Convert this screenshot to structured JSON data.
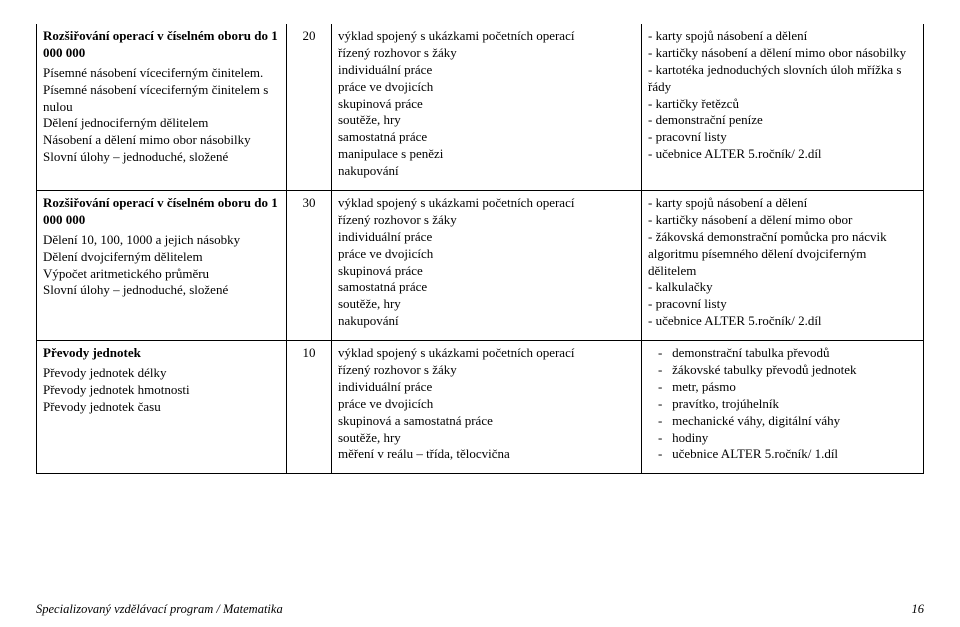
{
  "rows": [
    {
      "c1": {
        "title": "Rozšiřování operací v číselném oboru do 1 000 000",
        "lines": [
          "Písemné násobení víceciferným činitelem.",
          "Písemné násobení víceciferným činitelem s nulou",
          "Dělení jednociferným dělitelem",
          "Násobení a dělení mimo obor násobilky",
          "Slovní úlohy – jednoduché, složené"
        ]
      },
      "c2": "20",
      "c3": [
        "výklad spojený s ukázkami početních operací",
        "řízený rozhovor s žáky",
        "individuální práce",
        "práce ve dvojicích",
        "skupinová práce",
        "soutěže, hry",
        "samostatná práce",
        "manipulace s penězi",
        "nakupování"
      ],
      "c4": [
        "- karty spojů násobení a dělení",
        "- kartičky násobení a dělení mimo obor násobilky",
        "- kartotéka jednoduchých slovních úloh mřížka s řády",
        "- kartičky řetězců",
        "- demonstrační peníze",
        "- pracovní listy",
        "- učebnice ALTER 5.ročník/ 2.díl"
      ]
    },
    {
      "c1": {
        "title": "Rozšiřování operací v číselném oboru do 1 000 000",
        "lines": [
          "Dělení 10, 100, 1000 a jejich násobky",
          "Dělení dvojciferným dělitelem",
          "Výpočet aritmetického průměru",
          "Slovní úlohy – jednoduché, složené"
        ]
      },
      "c2": "30",
      "c3": [
        "výklad spojený s ukázkami početních operací",
        "řízený rozhovor s žáky",
        "individuální práce",
        "práce ve dvojicích",
        "skupinová práce",
        "samostatná práce",
        "soutěže, hry",
        "nakupování"
      ],
      "c4": [
        "- karty spojů násobení a dělení",
        "- kartičky násobení a dělení mimo obor",
        "- žákovská demonstrační pomůcka pro nácvik algoritmu písemného dělení dvojciferným dělitelem",
        "- kalkulačky",
        "- pracovní listy",
        "- učebnice ALTER 5.ročník/ 2.díl"
      ]
    },
    {
      "c1": {
        "title": "Převody jednotek",
        "lines": [
          "Převody jednotek délky",
          "Převody jednotek hmotnosti",
          "Převody jednotek času"
        ]
      },
      "c2": "10",
      "c3": [
        "výklad spojený s ukázkami početních operací",
        "řízený rozhovor s žáky",
        "individuální práce",
        "práce ve dvojicích",
        "skupinová a samostatná práce",
        "soutěže, hry",
        "měření v reálu – třída, tělocvična"
      ],
      "c4pad": [
        "demonstrační tabulka převodů",
        "žákovské tabulky převodů jednotek",
        "metr, pásmo",
        "pravítko, trojúhelník",
        "mechanické váhy, digitální váhy",
        "hodiny",
        "učebnice ALTER 5.ročník/ 1.díl"
      ]
    }
  ],
  "footer": {
    "left": "Specializovaný vzdělávací program / Matematika",
    "page": "16"
  }
}
